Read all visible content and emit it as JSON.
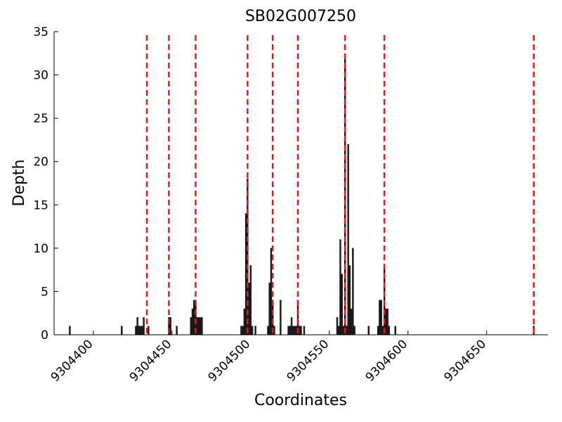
{
  "chart_data": {
    "type": "bar",
    "title": "SB02G007250",
    "x_label": "Coordinates",
    "y_label": "Depth",
    "x": [
      9304385,
      9304418,
      9304427,
      9304428,
      9304429,
      9304430,
      9304431,
      9304432,
      9304435,
      9304448,
      9304449,
      9304453,
      9304462,
      9304463,
      9304464,
      9304465,
      9304466,
      9304467,
      9304468,
      9304469,
      9304494,
      9304495,
      9304496,
      9304497,
      9304498,
      9304499,
      9304500,
      9304501,
      9304503,
      9304511,
      9304512,
      9304513,
      9304514,
      9304515,
      9304519,
      9304524,
      9304525,
      9304526,
      9304527,
      9304528,
      9304529,
      9304530,
      9304531,
      9304532,
      9304534,
      9304555,
      9304556,
      9304557,
      9304558,
      9304559,
      9304560,
      9304561,
      9304562,
      9304563,
      9304564,
      9304565,
      9304566,
      9304575,
      9304581,
      9304582,
      9304583,
      9304584,
      9304585,
      9304586,
      9304587,
      9304588,
      9304592,
      9304680
    ],
    "values": [
      1,
      1,
      1,
      2,
      1,
      1,
      1,
      2,
      1,
      2,
      2,
      1,
      2,
      3,
      4,
      4,
      2,
      2,
      2,
      2,
      1,
      1,
      3,
      14,
      18,
      6,
      8,
      1,
      1,
      1,
      6,
      10,
      4,
      1,
      4,
      1,
      1,
      2,
      1,
      1,
      1,
      4,
      1,
      1,
      1,
      2,
      1,
      11,
      7,
      1,
      32,
      1,
      22,
      8,
      3,
      10,
      1,
      1,
      1,
      4,
      4,
      1,
      8,
      3,
      3,
      1,
      1,
      1
    ],
    "color": "#222222",
    "vlines": {
      "x": [
        9304434,
        9304448,
        9304465,
        9304498,
        9304514,
        9304530,
        9304560,
        9304585,
        9304680
      ],
      "color": "#e8161a"
    },
    "xlim": [
      9304375,
      9304689
    ],
    "xticks": [
      9304400,
      9304450,
      9304500,
      9304550,
      9304600,
      9304650
    ],
    "ylim": [
      0,
      35
    ],
    "yticks": [
      0,
      5,
      10,
      15,
      20,
      25,
      30,
      35
    ]
  }
}
